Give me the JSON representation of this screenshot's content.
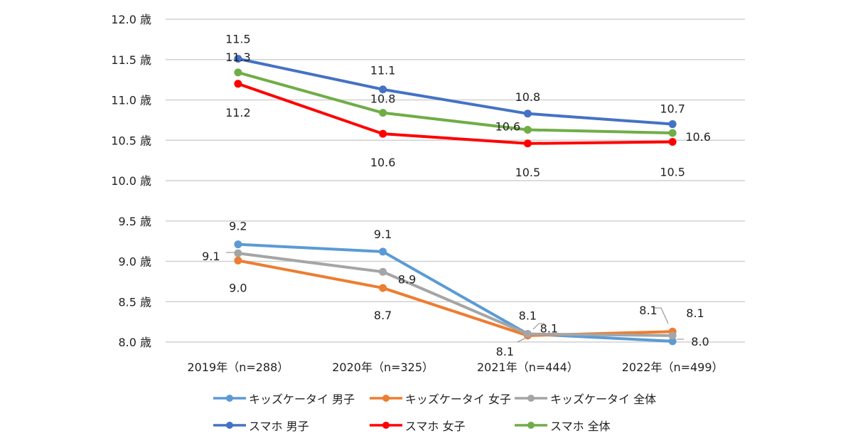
{
  "chart_data": {
    "type": "line",
    "title": "",
    "xlabel": "",
    "ylabel": "",
    "categories": [
      "2019年（n=288）",
      "2020年（n=325）",
      "2021年（n=444）",
      "2022年（n=499）"
    ],
    "y_ticks": [
      "8.0 歳",
      "8.5 歳",
      "9.0 歳",
      "9.5 歳",
      "10.0 歳",
      "10.5 歳",
      "11.0 歳",
      "11.5 歳",
      "12.0 歳"
    ],
    "y_tick_values": [
      8.0,
      8.5,
      9.0,
      9.5,
      10.0,
      10.5,
      11.0,
      11.5,
      12.0
    ],
    "ylim": [
      8.0,
      12.0
    ],
    "grid": true,
    "legend_position": "bottom",
    "series": [
      {
        "name": "キッズケータイ 男子",
        "color": "#5B9BD5",
        "values": [
          9.21,
          9.12,
          8.1,
          8.01
        ],
        "labels": [
          "9.2",
          "9.1",
          "8.1",
          "8.0"
        ]
      },
      {
        "name": "キッズケータイ 女子",
        "color": "#ED7D31",
        "values": [
          9.01,
          8.67,
          8.08,
          8.13
        ],
        "labels": [
          "9.0",
          "8.7",
          "8.1",
          "8.1"
        ]
      },
      {
        "name": "キッズケータイ 全体",
        "color": "#A5A5A5",
        "values": [
          9.1,
          8.87,
          8.1,
          8.08
        ],
        "labels": [
          "9.1",
          "8.9",
          "8.1",
          "8.1"
        ]
      },
      {
        "name": "スマホ 男子",
        "color": "#4472C4",
        "values": [
          11.51,
          11.13,
          10.83,
          10.7
        ],
        "labels": [
          "11.5",
          "11.1",
          "10.8",
          "10.7"
        ]
      },
      {
        "name": "スマホ 女子",
        "color": "#FF0000",
        "values": [
          11.2,
          10.58,
          10.46,
          10.48
        ],
        "labels": [
          "11.2",
          "10.6",
          "10.5",
          "10.5"
        ]
      },
      {
        "name": "スマホ 全体",
        "color": "#70AD47",
        "values": [
          11.34,
          10.84,
          10.63,
          10.59
        ],
        "labels": [
          "11.3",
          "10.8",
          "10.6",
          "10.6"
        ]
      }
    ]
  }
}
